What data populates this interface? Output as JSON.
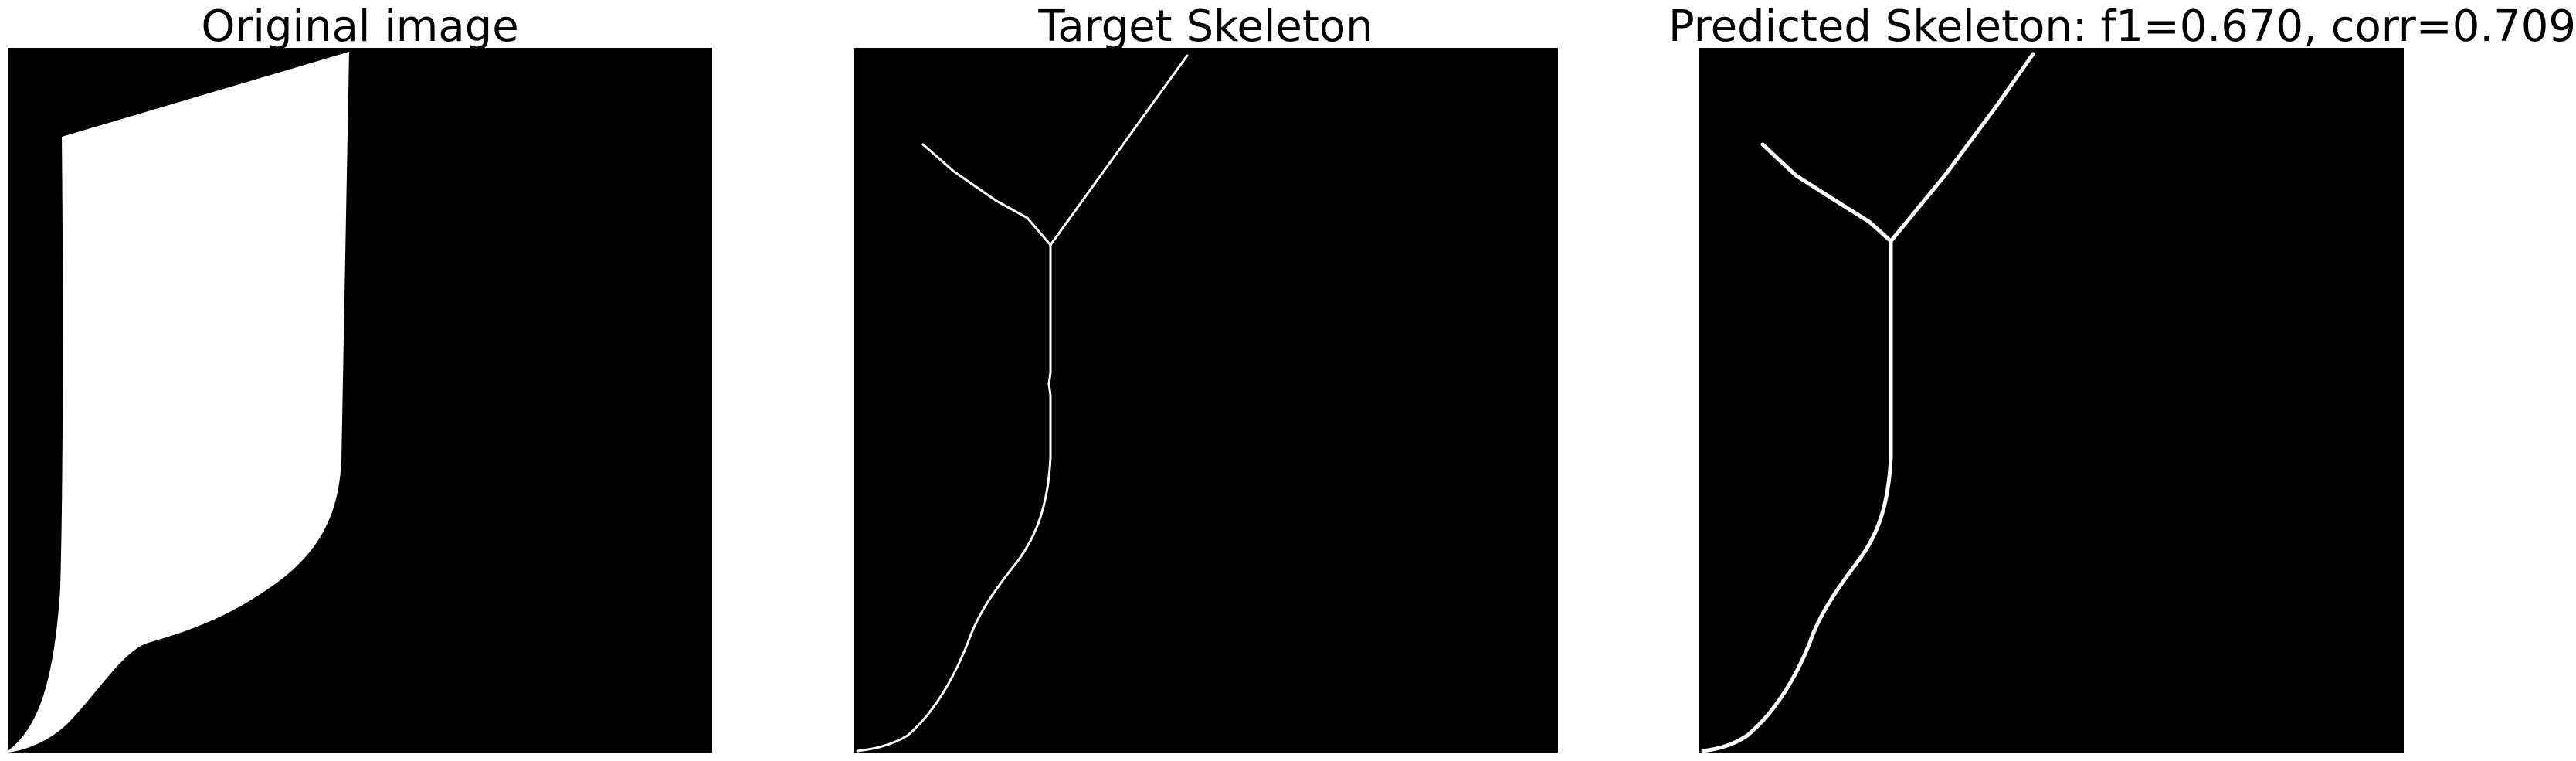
{
  "panels": [
    {
      "title": "Original image"
    },
    {
      "title": "Target Skeleton"
    },
    {
      "title": "Predicted Skeleton: f1=0.670, corr=0.709"
    }
  ],
  "colors": {
    "background": "#000000",
    "foreground": "#ffffff",
    "page": "#ffffff"
  }
}
